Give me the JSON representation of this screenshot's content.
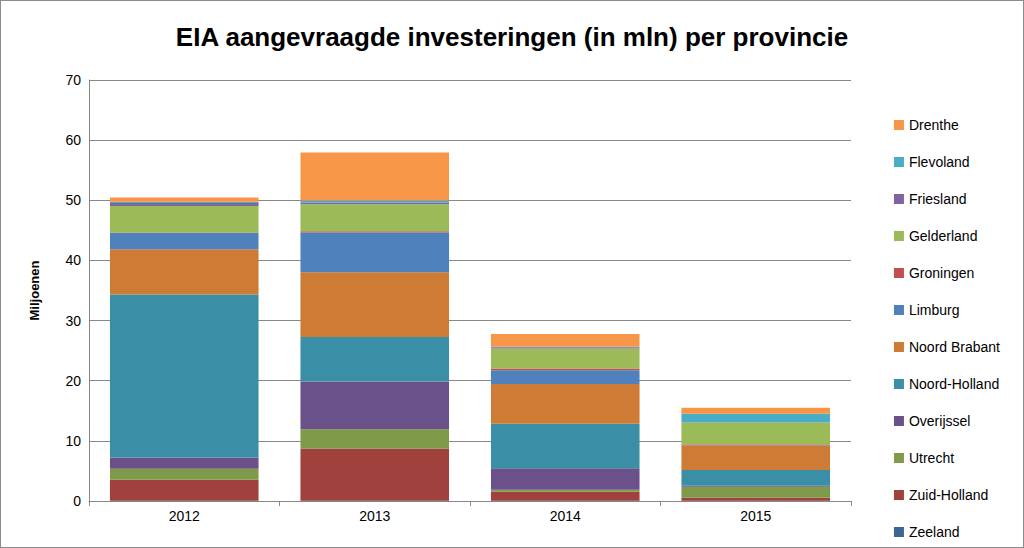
{
  "chart_data": {
    "type": "bar",
    "title": "EIA aangevraagde investeringen (in mln) per provincie",
    "y_label": "Miljoenen",
    "categories": [
      "2012",
      "2013",
      "2014",
      "2015"
    ],
    "ylim": [
      0,
      70
    ],
    "yticks": [
      0,
      10,
      20,
      30,
      40,
      50,
      60,
      70
    ],
    "grid": true,
    "stacked": true,
    "legend": "right",
    "series": [
      {
        "name": "Drenthe",
        "color": "#f79646",
        "values": [
          0.7,
          8.0,
          2.1,
          1.0
        ]
      },
      {
        "name": "Flevoland",
        "color": "#4bacc6",
        "values": [
          0.2,
          0.3,
          0.1,
          1.4
        ]
      },
      {
        "name": "Friesland",
        "color": "#8064a2",
        "values": [
          0.5,
          0.3,
          0.2,
          0.05
        ]
      },
      {
        "name": "Gelderland",
        "color": "#9bbb59",
        "values": [
          4.4,
          4.5,
          3.3,
          3.6
        ]
      },
      {
        "name": "Groningen",
        "color": "#c0504d",
        "values": [
          0.1,
          0.2,
          0.3,
          0.1
        ]
      },
      {
        "name": "Limburg",
        "color": "#4f81bd",
        "values": [
          2.7,
          6.6,
          2.3,
          0.1
        ]
      },
      {
        "name": "Noord Brabant",
        "color": "#cd7b35",
        "values": [
          7.5,
          10.8,
          6.6,
          4.1
        ]
      },
      {
        "name": "Noord-Holland",
        "color": "#3a8ea5",
        "values": [
          27.1,
          7.4,
          7.4,
          2.6
        ]
      },
      {
        "name": "Overijssel",
        "color": "#6b5189",
        "values": [
          1.9,
          7.9,
          3.6,
          0.2
        ]
      },
      {
        "name": "Utrecht",
        "color": "#7f9a48",
        "values": [
          1.8,
          3.2,
          0.3,
          1.8
        ]
      },
      {
        "name": "Zuid-Holland",
        "color": "#a0413e",
        "values": [
          3.5,
          8.7,
          1.5,
          0.5
        ]
      },
      {
        "name": "Zeeland",
        "color": "#3c6595",
        "values": [
          0.05,
          0.05,
          0.05,
          0.05
        ]
      }
    ]
  }
}
